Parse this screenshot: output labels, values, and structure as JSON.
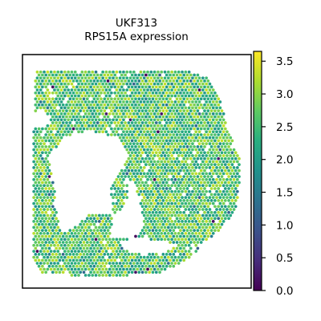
{
  "chart_data": {
    "type": "scatter",
    "title": "UKF313",
    "subtitle": "RPS15A expression",
    "xlabel": "",
    "ylabel": "",
    "colorbar": {
      "colormap": "viridis",
      "min": 0.0,
      "max": 3.65,
      "ticks": [
        0.0,
        0.5,
        1.0,
        1.5,
        2.0,
        2.5,
        3.0,
        3.5
      ],
      "tick_labels": [
        "0.0",
        "0.5",
        "1.0",
        "1.5",
        "2.0",
        "2.5",
        "3.0",
        "3.5"
      ]
    },
    "expression_summary": {
      "typical_range": [
        1.8,
        3.4
      ],
      "low_outliers_near": 0.0
    },
    "grid": false,
    "legend": "colorbar-right"
  }
}
